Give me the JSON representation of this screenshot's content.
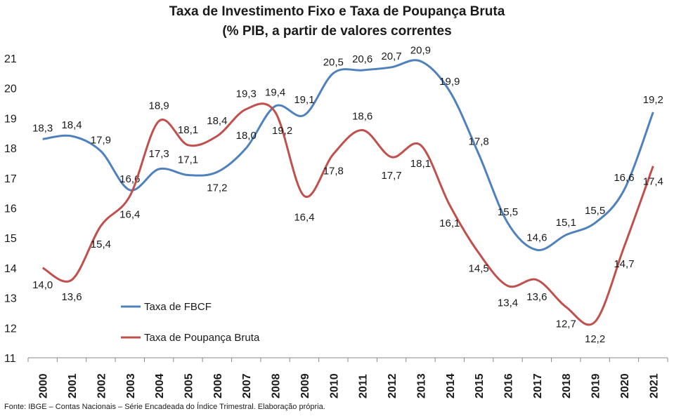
{
  "chart_data": {
    "type": "line",
    "title": "Taxa de Investimento Fixo e Taxa de Poupança Bruta",
    "subtitle": "(% PIB, a partir de valores correntes",
    "x": [
      "2000",
      "2001",
      "2002",
      "2003",
      "2004",
      "2005",
      "2006",
      "2007",
      "2008",
      "2009",
      "2010",
      "2011",
      "2012",
      "2013",
      "2014",
      "2015",
      "2016",
      "2017",
      "2018",
      "2019",
      "2020",
      "2021"
    ],
    "ylim": [
      11,
      21
    ],
    "yticks": [
      "11",
      "12",
      "13",
      "14",
      "15",
      "16",
      "17",
      "18",
      "19",
      "20",
      "21"
    ],
    "series": [
      {
        "name": "Taxa de FBCF",
        "color": "#4f81bd",
        "values": [
          18.3,
          18.4,
          17.9,
          16.6,
          17.3,
          17.1,
          17.2,
          18.0,
          19.4,
          19.1,
          20.5,
          20.6,
          20.7,
          20.9,
          19.9,
          17.8,
          15.5,
          14.6,
          15.1,
          15.5,
          16.6,
          19.2
        ],
        "labels": [
          "18,3",
          "18,4",
          "17,9",
          "16,6",
          "17,3",
          "17,1",
          "17,2",
          "18,0",
          "19,4",
          "19,1",
          "20,5",
          "20,6",
          "20,7",
          "20,9",
          "19,9",
          "17,8",
          "15,5",
          "14,6",
          "15,1",
          "15,5",
          "16,6",
          "19,2"
        ]
      },
      {
        "name": "Taxa de Poupança Bruta",
        "color": "#c0504d",
        "values": [
          14.0,
          13.6,
          15.4,
          16.4,
          18.9,
          18.1,
          18.4,
          19.3,
          19.2,
          16.4,
          17.8,
          18.6,
          17.7,
          18.1,
          16.1,
          14.5,
          13.4,
          13.6,
          12.7,
          12.2,
          14.7,
          17.4
        ],
        "labels": [
          "14,0",
          "13,6",
          "15,4",
          "16,4",
          "18,9",
          "18,1",
          "18,4",
          "19,3",
          "19,2",
          "16,4",
          "17,8",
          "18,6",
          "17,7",
          "18,1",
          "16,1",
          "14,5",
          "13,4",
          "13,6",
          "12,7",
          "12,2",
          "14,7",
          "17,4"
        ]
      }
    ],
    "legend_position": "bottom-left",
    "grid": false
  },
  "source": "Fonte: IBGE – Contas Nacionais – Série Encadeada do Índice Trimestral. Elaboração própria."
}
